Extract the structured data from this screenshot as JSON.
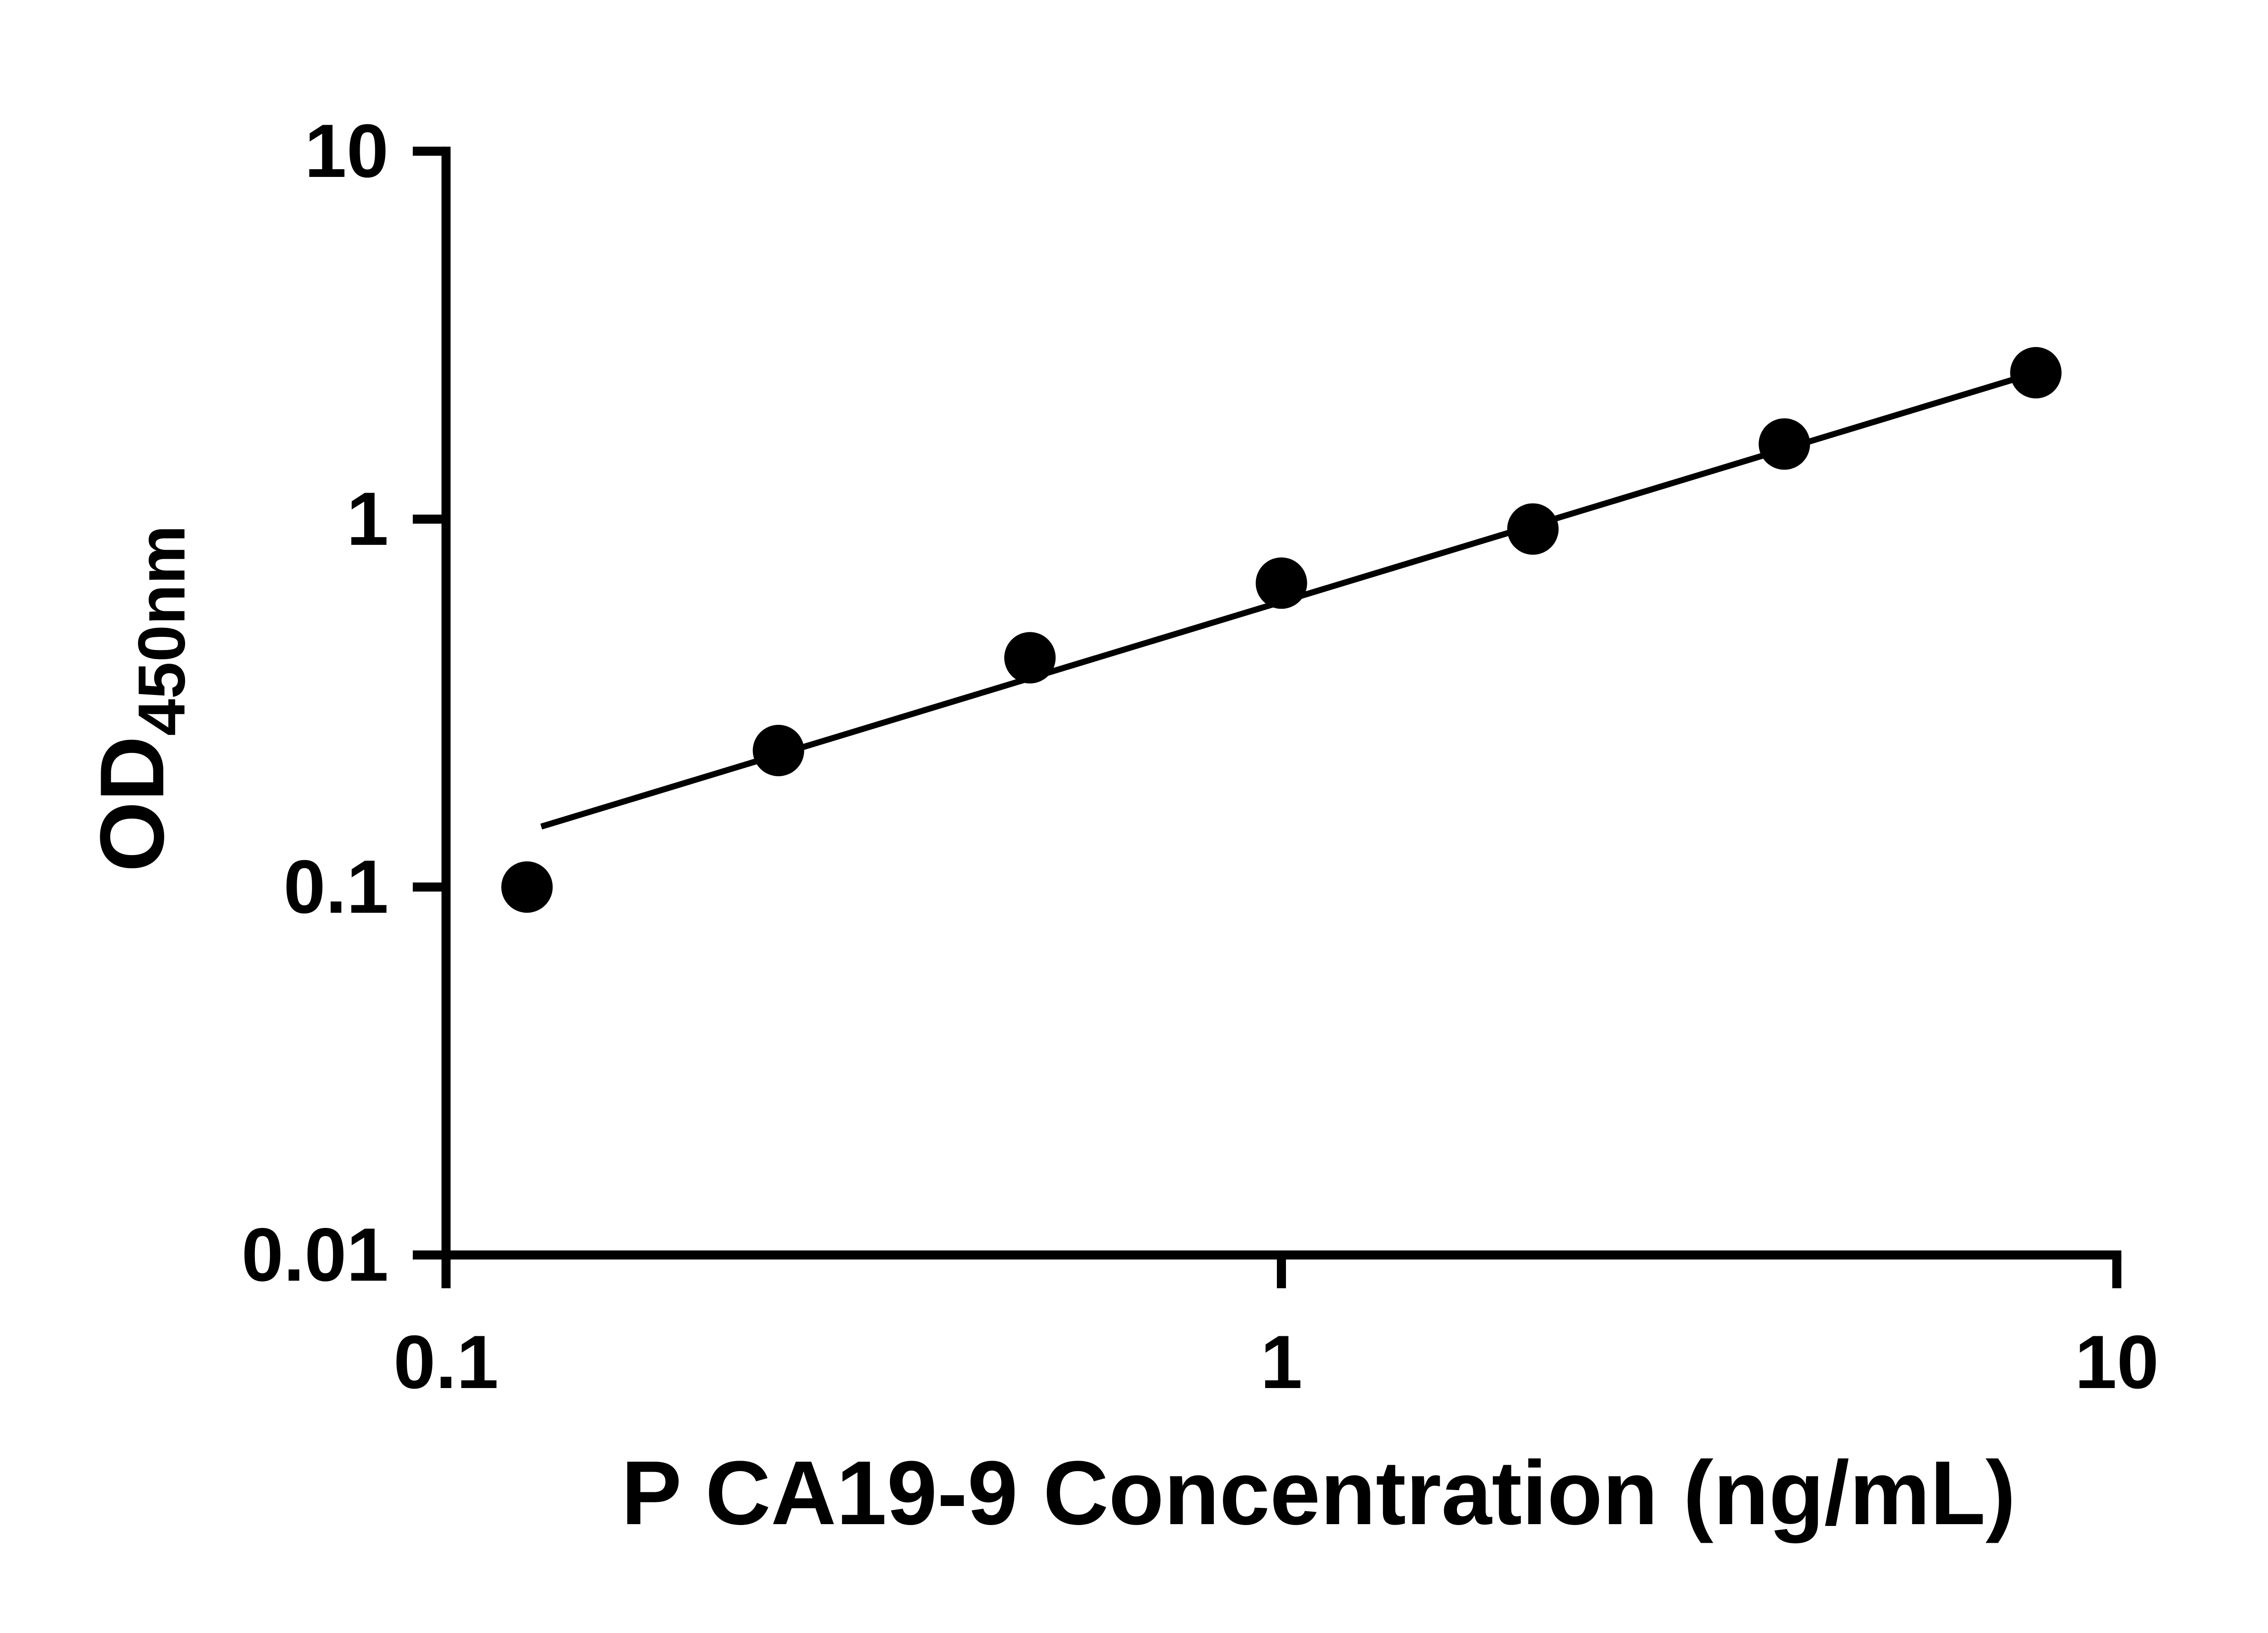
{
  "chart_data": {
    "type": "scatter",
    "title": "",
    "xlabel": "P CA19-9 Concentration (ng/mL)",
    "ylabel_main": "OD",
    "ylabel_sub": "450nm",
    "x_scale": "log",
    "y_scale": "log",
    "xlim": [
      0.1,
      10
    ],
    "ylim": [
      0.01,
      10
    ],
    "grid": false,
    "legend": false,
    "marker_color": "#000000",
    "line_color": "#000000",
    "background": "#ffffff",
    "x_ticks": [
      {
        "value": 0.1,
        "label": "0.1"
      },
      {
        "value": 1,
        "label": "1"
      },
      {
        "value": 10,
        "label": "10"
      }
    ],
    "y_ticks": [
      {
        "value": 0.01,
        "label": "0.01"
      },
      {
        "value": 0.1,
        "label": "0.1"
      },
      {
        "value": 1,
        "label": "1"
      },
      {
        "value": 10,
        "label": "10"
      }
    ],
    "points": [
      {
        "x": 0.125,
        "y": 0.1
      },
      {
        "x": 0.25,
        "y": 0.235
      },
      {
        "x": 0.5,
        "y": 0.42
      },
      {
        "x": 1,
        "y": 0.67
      },
      {
        "x": 2,
        "y": 0.94
      },
      {
        "x": 4,
        "y": 1.6
      },
      {
        "x": 8,
        "y": 2.5
      }
    ],
    "trendline": {
      "x1": 0.13,
      "y1": 0.146,
      "x2": 8,
      "y2": 2.5
    }
  }
}
